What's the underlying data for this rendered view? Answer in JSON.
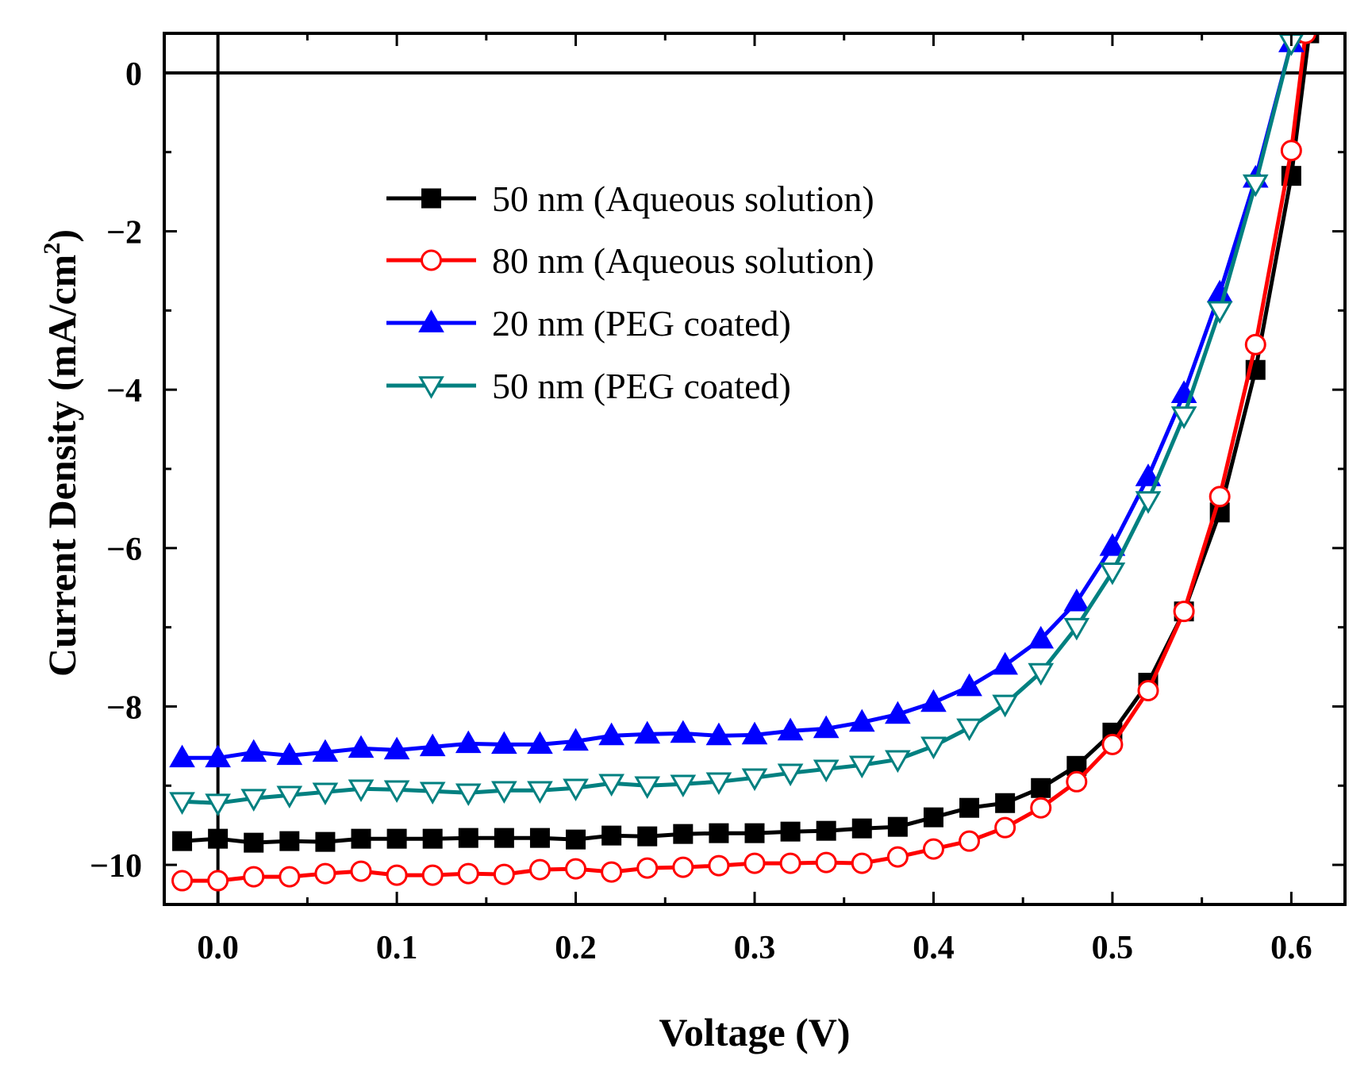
{
  "chart_data": {
    "type": "line",
    "xlabel": "Voltage (V)",
    "ylabel_main": "Current Density (mA/cm",
    "ylabel_sup": "2",
    "ylabel_close": ")",
    "xlim": [
      -0.03,
      0.63
    ],
    "ylim": [
      -10.5,
      0.5
    ],
    "xticks": [
      0.0,
      0.1,
      0.2,
      0.3,
      0.4,
      0.5,
      0.6
    ],
    "xtick_labels": [
      "0.0",
      "0.1",
      "0.2",
      "0.3",
      "0.4",
      "0.5",
      "0.6"
    ],
    "yticks": [
      0,
      -2,
      -4,
      -6,
      -8,
      -10
    ],
    "ytick_labels": [
      "0",
      "−2",
      "−4",
      "−6",
      "−8",
      "−10"
    ],
    "reference_lines": {
      "x": 0,
      "y": 0
    },
    "legend_position": "upper-center",
    "series": [
      {
        "name": "50 nm (Aqueous solution)",
        "color": "#000000",
        "marker": "square-filled",
        "x": [
          -0.02,
          0.0,
          0.02,
          0.04,
          0.06,
          0.08,
          0.1,
          0.12,
          0.14,
          0.16,
          0.18,
          0.2,
          0.22,
          0.24,
          0.26,
          0.28,
          0.3,
          0.32,
          0.34,
          0.36,
          0.38,
          0.4,
          0.42,
          0.44,
          0.46,
          0.48,
          0.5,
          0.52,
          0.54,
          0.56,
          0.58,
          0.6,
          0.61
        ],
        "y": [
          -9.7,
          -9.67,
          -9.72,
          -9.7,
          -9.71,
          -9.67,
          -9.67,
          -9.67,
          -9.66,
          -9.66,
          -9.66,
          -9.68,
          -9.63,
          -9.64,
          -9.61,
          -9.6,
          -9.6,
          -9.58,
          -9.57,
          -9.54,
          -9.52,
          -9.4,
          -9.28,
          -9.22,
          -9.03,
          -8.75,
          -8.33,
          -7.7,
          -6.8,
          -5.55,
          -3.75,
          -1.3,
          0.5
        ]
      },
      {
        "name": "80 nm (Aqueous solution)",
        "color": "#ff0000",
        "marker": "circle-open",
        "x": [
          -0.02,
          0.0,
          0.02,
          0.04,
          0.06,
          0.08,
          0.1,
          0.12,
          0.14,
          0.16,
          0.18,
          0.2,
          0.22,
          0.24,
          0.26,
          0.28,
          0.3,
          0.32,
          0.34,
          0.36,
          0.38,
          0.4,
          0.42,
          0.44,
          0.46,
          0.48,
          0.5,
          0.52,
          0.54,
          0.56,
          0.58,
          0.6,
          0.608
        ],
        "y": [
          -10.2,
          -10.2,
          -10.15,
          -10.15,
          -10.11,
          -10.08,
          -10.13,
          -10.13,
          -10.11,
          -10.12,
          -10.06,
          -10.05,
          -10.09,
          -10.04,
          -10.03,
          -10.01,
          -9.98,
          -9.98,
          -9.97,
          -9.98,
          -9.9,
          -9.8,
          -9.7,
          -9.53,
          -9.28,
          -8.95,
          -8.48,
          -7.8,
          -6.8,
          -5.35,
          -3.43,
          -0.98,
          0.5
        ]
      },
      {
        "name": "20 nm (PEG coated)",
        "color": "#0000ff",
        "marker": "triangle-up-filled",
        "x": [
          -0.02,
          0.0,
          0.02,
          0.04,
          0.06,
          0.08,
          0.1,
          0.12,
          0.14,
          0.16,
          0.18,
          0.2,
          0.22,
          0.24,
          0.26,
          0.28,
          0.3,
          0.32,
          0.34,
          0.36,
          0.38,
          0.4,
          0.42,
          0.44,
          0.46,
          0.48,
          0.5,
          0.52,
          0.54,
          0.56,
          0.58,
          0.6
        ],
        "y": [
          -8.65,
          -8.65,
          -8.58,
          -8.62,
          -8.58,
          -8.53,
          -8.55,
          -8.51,
          -8.47,
          -8.48,
          -8.48,
          -8.44,
          -8.37,
          -8.35,
          -8.34,
          -8.37,
          -8.36,
          -8.31,
          -8.28,
          -8.2,
          -8.1,
          -7.95,
          -7.75,
          -7.48,
          -7.15,
          -6.68,
          -5.98,
          -5.1,
          -4.05,
          -2.78,
          -1.33,
          0.38
        ]
      },
      {
        "name": "50 nm (PEG coated)",
        "color": "#008080",
        "marker": "triangle-down-open",
        "x": [
          -0.02,
          0.0,
          0.02,
          0.04,
          0.06,
          0.08,
          0.1,
          0.12,
          0.14,
          0.16,
          0.18,
          0.2,
          0.22,
          0.24,
          0.26,
          0.28,
          0.3,
          0.32,
          0.34,
          0.36,
          0.38,
          0.4,
          0.42,
          0.44,
          0.46,
          0.48,
          0.5,
          0.52,
          0.54,
          0.56,
          0.58,
          0.6
        ],
        "y": [
          -9.2,
          -9.22,
          -9.16,
          -9.12,
          -9.08,
          -9.04,
          -9.05,
          -9.07,
          -9.09,
          -9.06,
          -9.06,
          -9.03,
          -8.97,
          -9.0,
          -8.98,
          -8.95,
          -8.9,
          -8.84,
          -8.79,
          -8.74,
          -8.67,
          -8.5,
          -8.27,
          -7.97,
          -7.57,
          -7.0,
          -6.3,
          -5.4,
          -4.33,
          -3.0,
          -1.4,
          0.38
        ]
      }
    ]
  }
}
